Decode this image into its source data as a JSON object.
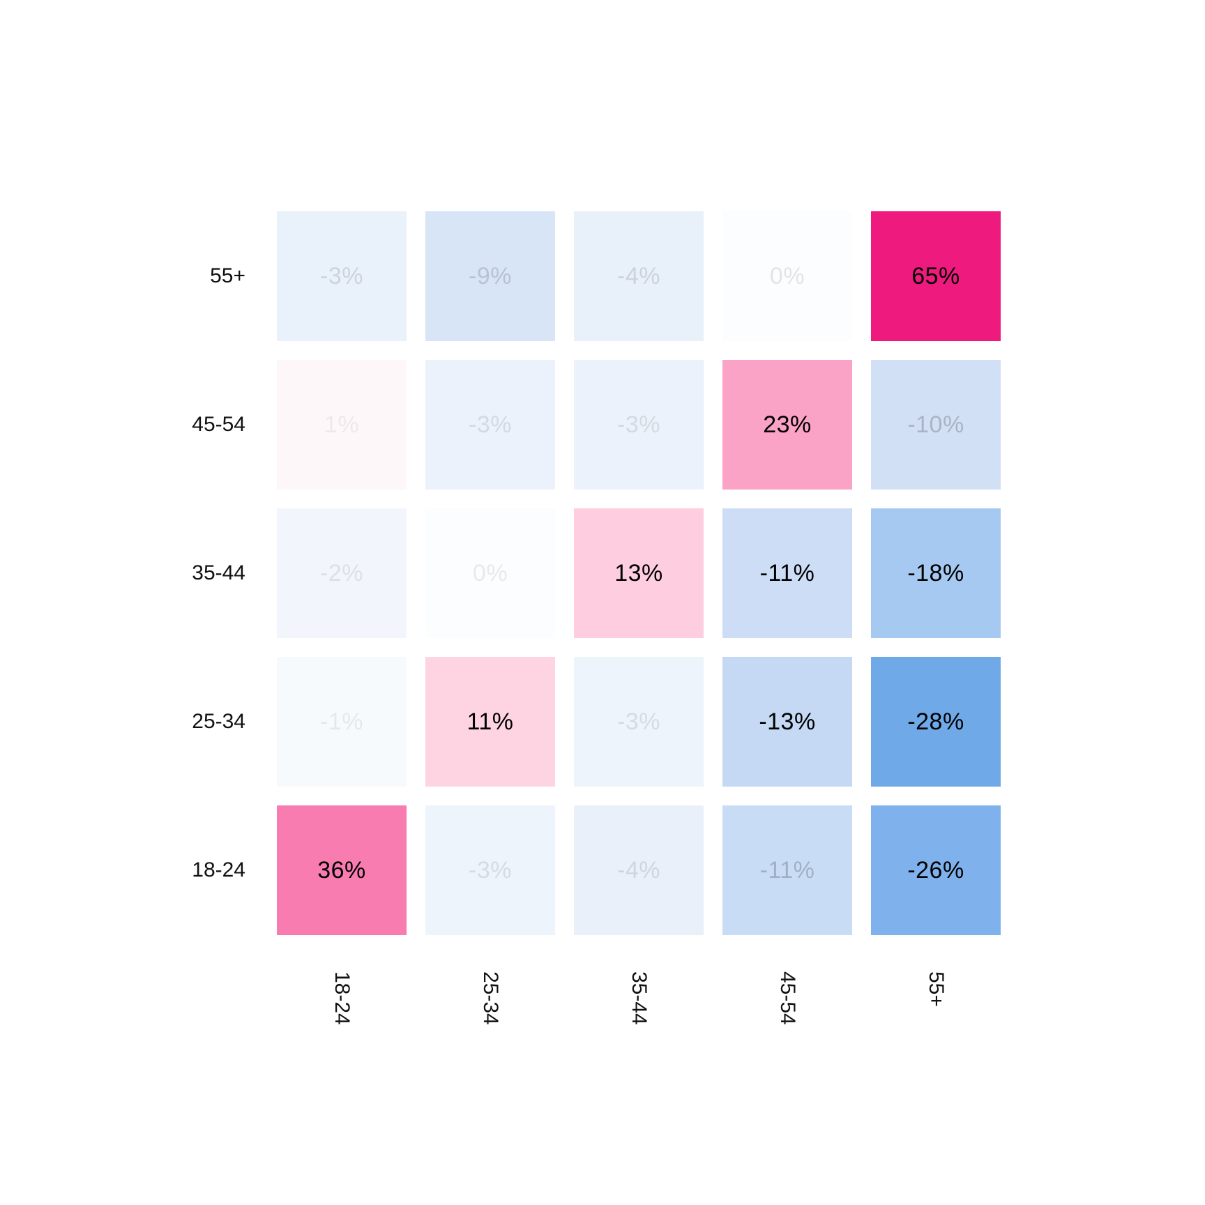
{
  "chart_data": {
    "type": "heatmap",
    "title": "",
    "xlabel": "",
    "ylabel": "",
    "legend": "none",
    "value_format": "percent",
    "rows": [
      "55+",
      "45-54",
      "35-44",
      "25-34",
      "18-24"
    ],
    "columns": [
      "18-24",
      "25-34",
      "35-44",
      "45-54",
      "55+"
    ],
    "values": [
      [
        -3,
        -9,
        -4,
        0,
        65
      ],
      [
        1,
        -3,
        -3,
        23,
        -10
      ],
      [
        -2,
        0,
        13,
        -11,
        -18
      ],
      [
        -1,
        11,
        -3,
        -13,
        -28
      ],
      [
        36,
        -3,
        -4,
        -11,
        -26
      ]
    ],
    "cell_labels": [
      [
        "-3%",
        "-9%",
        "-4%",
        "0%",
        "65%"
      ],
      [
        "1%",
        "-3%",
        "-3%",
        "23%",
        "-10%"
      ],
      [
        "-2%",
        "0%",
        "13%",
        "-11%",
        "-18%"
      ],
      [
        "-1%",
        "11%",
        "-3%",
        "-13%",
        "-28%"
      ],
      [
        "36%",
        "-3%",
        "-4%",
        "-11%",
        "-26%"
      ]
    ],
    "cell_colors": [
      [
        "#e9f1fb",
        "#d8e5f7",
        "#e8f0fa",
        "#fbfdfe",
        "#ee1a7d"
      ],
      [
        "#fef7fa",
        "#ecf2fb",
        "#ecf2fb",
        "#fba3c6",
        "#d2e0f6"
      ],
      [
        "#f2f6fc",
        "#fbfdfe",
        "#fecde0",
        "#cdddf6",
        "#a5c9f1"
      ],
      [
        "#f7fafd",
        "#fed4e3",
        "#eef4fb",
        "#c5d9f4",
        "#70a9e8"
      ],
      [
        "#f97cb1",
        "#eef4fc",
        "#e9f0fa",
        "#c9dcf6",
        "#7fb2ec"
      ]
    ],
    "text_colors": [
      [
        "rgba(0,0,0,0.12)",
        "rgba(0,0,0,0.15)",
        "rgba(0,0,0,0.12)",
        "rgba(0,0,0,0.10)",
        "#000000"
      ],
      [
        "rgba(0,0,0,0.06)",
        "rgba(0,0,0,0.10)",
        "rgba(0,0,0,0.10)",
        "#000000",
        "rgba(0,0,0,0.20)"
      ],
      [
        "rgba(0,0,0,0.09)",
        "rgba(0,0,0,0.08)",
        "#000000",
        "#000000",
        "#000000"
      ],
      [
        "rgba(0,0,0,0.07)",
        "#000000",
        "rgba(0,0,0,0.10)",
        "#000000",
        "#000000"
      ],
      [
        "#000000",
        "rgba(0,0,0,0.10)",
        "rgba(0,0,0,0.11)",
        "rgba(0,0,0,0.20)",
        "#000000"
      ]
    ]
  },
  "colors": {
    "background": "#ffffff",
    "positive_max": "#ee1a7d",
    "negative_max": "#70a9e8",
    "axis_label_text": "#111111"
  }
}
